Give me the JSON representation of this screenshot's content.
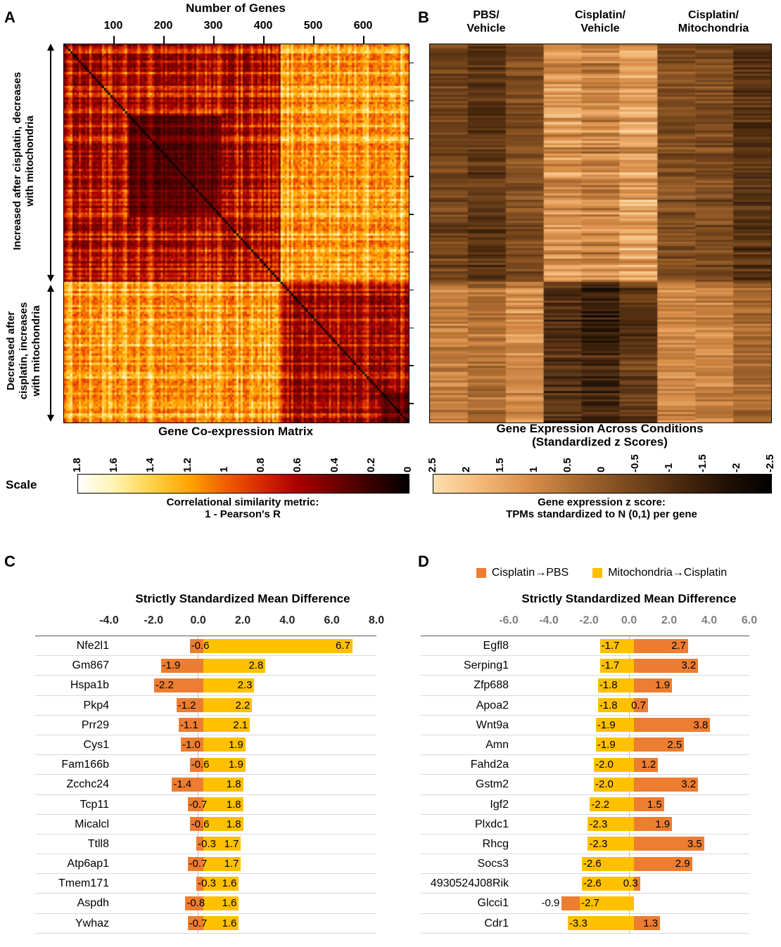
{
  "figure": {
    "panels": {
      "a": "A",
      "b": "B",
      "c": "C",
      "d": "D"
    }
  },
  "colors": {
    "orange": "#ED7D31",
    "yellow": "#FFC000",
    "row_separator": "#D9D9D9",
    "zero_line": "#BFBFBF",
    "c_axis_text": "#262626",
    "d_axis_text": "#808080"
  },
  "chart_data": [
    {
      "id": "gene_coexpression_matrix",
      "panel": "A",
      "type": "heatmap",
      "title": "Gene Co-expression Matrix",
      "x_axis_title": "Number of Genes",
      "x_ticks": [
        "100",
        "200",
        "300",
        "400",
        "500",
        "600"
      ],
      "x_range": [
        0,
        690
      ],
      "row_groups": [
        {
          "label_lines": [
            "Increased after cisplatin, decreases",
            "with mitochondria"
          ],
          "fraction": 0.63
        },
        {
          "label_lines": [
            "Decreased after",
            "cisplatin, increases",
            "with mitochondria"
          ],
          "fraction": 0.37
        }
      ],
      "colorbar": {
        "scale_label": "Scale",
        "ticks": [
          "1.8",
          "1.6",
          "1.4",
          "1.2",
          "1",
          "0.8",
          "0.6",
          "0.4",
          "0.2",
          "0"
        ],
        "domain_left_to_right": [
          1.8,
          0
        ],
        "caption_lines": [
          "Correlational similarity metric:",
          "1 - Pearson's R"
        ],
        "gradient_left_to_right": [
          "#FFFFFF",
          "#FFF3B0",
          "#FFD24A",
          "#FFA600",
          "#F06000",
          "#D62800",
          "#A80000",
          "#700000",
          "#380000",
          "#000000"
        ]
      }
    },
    {
      "id": "expression_zscore_heatmap",
      "panel": "B",
      "type": "heatmap",
      "title_lines": [
        "Gene Expression Across Conditions",
        "(Standardized z Scores)"
      ],
      "col_groups": [
        "PBS/Vehicle",
        "Cisplatin/Vehicle",
        "Cisplatin/Mitochondria"
      ],
      "col_group_label_lines": [
        [
          "PBS/",
          "Vehicle"
        ],
        [
          "Cisplatin/",
          "Vehicle"
        ],
        [
          "Cisplatin/",
          "Mitochondria"
        ]
      ],
      "samples_per_group": 3,
      "row_groups_pattern": [
        {
          "fraction": 0.63,
          "group_means": [
            -0.5,
            1.2,
            -0.6
          ]
        },
        {
          "fraction": 0.37,
          "group_means": [
            0.8,
            -1.0,
            0.6
          ]
        }
      ],
      "colorbar": {
        "ticks": [
          "2.5",
          "2",
          "1.5",
          "1",
          "0.5",
          "0",
          "-0.5",
          "-1",
          "-1.5",
          "-2",
          "-2.5"
        ],
        "domain_left_to_right": [
          2.5,
          -2.5
        ],
        "caption_lines": [
          "Gene expression z score:",
          "TPMs standardized to N (0,1) per gene"
        ],
        "gradient_left_to_right": [
          "#FDDFAF",
          "#F4B877",
          "#D98E4A",
          "#A96A30",
          "#7C4A1E",
          "#4E2C10",
          "#241204",
          "#000000"
        ]
      }
    },
    {
      "id": "ssmd_panel_c",
      "panel": "C",
      "type": "bar",
      "orientation": "horizontal",
      "title": "Strictly Standardized Mean Difference",
      "x_ticks": [
        "-4.0",
        "-2.0",
        "0.0",
        "2.0",
        "4.0",
        "6.0",
        "8.0"
      ],
      "xlim": [
        -4,
        8
      ],
      "categories": [
        "Nfe2l1",
        "Gm867",
        "Hspa1b",
        "Pkp4",
        "Prr29",
        "Cys1",
        "Fam166b",
        "Zcchc24",
        "Tcp11",
        "Micalcl",
        "Ttll8",
        "Atp6ap1",
        "Tmem171",
        "Aspdh",
        "Ywhaz"
      ],
      "series": [
        {
          "name": "Cisplatin→PBS",
          "color": "#ED7D31",
          "values": [
            -0.6,
            -1.9,
            -2.2,
            -1.2,
            -1.1,
            -1.0,
            -0.6,
            -1.4,
            -0.7,
            -0.6,
            -0.3,
            -0.7,
            -0.3,
            -0.8,
            -0.7
          ]
        },
        {
          "name": "Mitochondria→Cisplatin",
          "color": "#FFC000",
          "values": [
            6.7,
            2.8,
            2.3,
            2.2,
            2.1,
            1.9,
            1.9,
            1.8,
            1.8,
            1.8,
            1.7,
            1.7,
            1.6,
            1.6,
            1.6
          ]
        }
      ]
    },
    {
      "id": "ssmd_panel_d",
      "panel": "D",
      "type": "bar",
      "orientation": "horizontal",
      "title": "Strictly Standardized Mean Difference",
      "legend": [
        {
          "label": "Cisplatin→PBS",
          "color": "#ED7D31"
        },
        {
          "label": "Mitochondria→Cisplatin",
          "color": "#FFC000"
        }
      ],
      "x_ticks": [
        "-6.0",
        "-4.0",
        "-2.0",
        "0.0",
        "2.0",
        "4.0",
        "6.0"
      ],
      "xlim": [
        -6,
        6
      ],
      "categories": [
        "Egfl8",
        "Serping1",
        "Zfp688",
        "Apoa2",
        "Wnt9a",
        "Amn",
        "Fahd2a",
        "Gstm2",
        "Igf2",
        "Plxdc1",
        "Rhcg",
        "Socs3",
        "4930524J08Rik",
        "Glcci1",
        "Cdr1"
      ],
      "series": [
        {
          "name": "Mitochondria→Cisplatin",
          "color": "#FFC000",
          "values": [
            -1.7,
            -1.7,
            -1.8,
            -1.8,
            -1.9,
            -1.9,
            -2.0,
            -2.0,
            -2.2,
            -2.3,
            -2.3,
            -2.6,
            -2.6,
            -2.7,
            -3.3
          ]
        },
        {
          "name": "Cisplatin→PBS",
          "color": "#ED7D31",
          "values": [
            2.7,
            3.2,
            1.9,
            0.7,
            3.8,
            2.5,
            1.2,
            3.2,
            1.5,
            1.9,
            3.5,
            2.9,
            0.3,
            -0.9,
            1.3
          ]
        }
      ]
    }
  ]
}
